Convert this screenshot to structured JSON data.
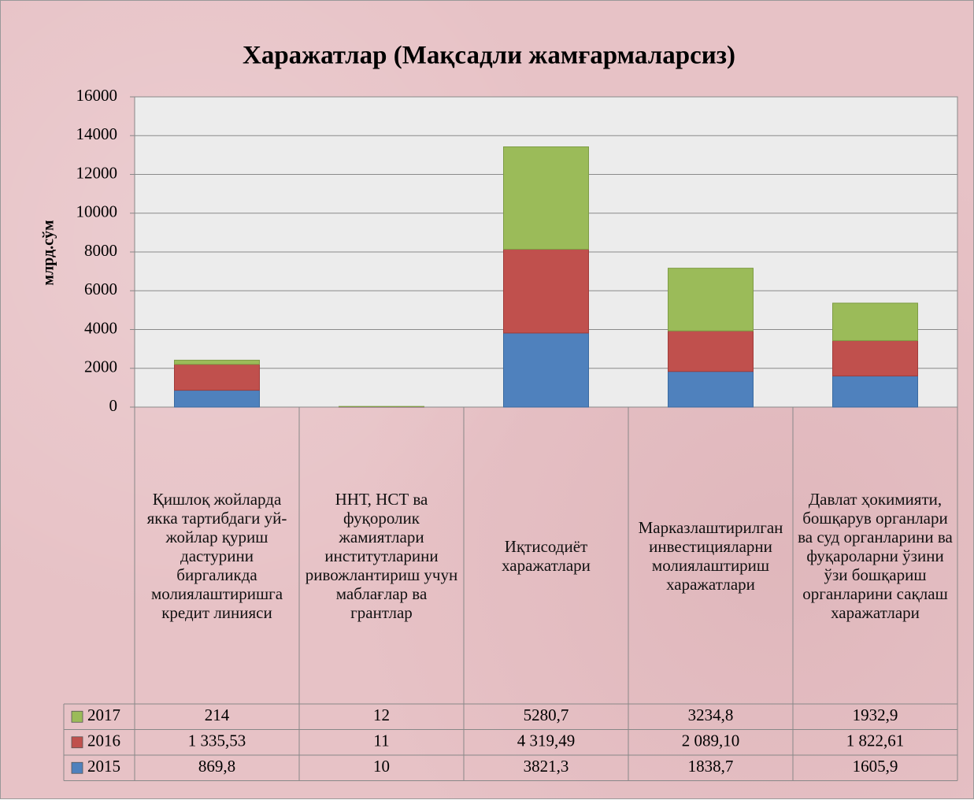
{
  "chart_data": {
    "type": "stacked_bar",
    "title": "Харажатлар (Мақсадли жамғармаларсиз)",
    "y_label": "млрд.сўм",
    "categories": [
      "Қишлоқ жойларда якка тартибдаги уй-жойлар қуриш дастурини биргаликда молиялаштиришга кредит линияси",
      "ННТ, НСТ ва фуқоролик жамиятлари институтларини ривожлантириш учун маблағлар ва грантлар",
      "Иқтисодиёт харажатлари",
      "Марказлаштирилган инвестицияларни молиялаштириш харажатлари",
      "Давлат ҳокимияти, бошқарув органлари ва суд органларини ва фуқароларни ўзини ўзи бошқариш органларини сақлаш харажатлари"
    ],
    "series": [
      {
        "name": "2015",
        "color": "#4f81bd",
        "values": [
          869.8,
          10,
          3821.3,
          1838.7,
          1605.9
        ],
        "value_labels": [
          "869,8",
          "10",
          "3821,3",
          "1838,7",
          "1605,9"
        ]
      },
      {
        "name": "2016",
        "color": "#c0504d",
        "values": [
          1335.53,
          11,
          4319.49,
          2089.1,
          1822.61
        ],
        "value_labels": [
          "1 335,53",
          "11",
          "4 319,49",
          "2 089,10",
          "1 822,61"
        ]
      },
      {
        "name": "2017",
        "color": "#9bbb59",
        "values": [
          214,
          12,
          5280.7,
          3234.8,
          1932.9
        ],
        "value_labels": [
          "214",
          "12",
          "5280,7",
          "3234,8",
          "1932,9"
        ]
      }
    ],
    "ylim": [
      0,
      16000
    ],
    "yticks": [
      0,
      2000,
      4000,
      6000,
      8000,
      10000,
      12000,
      14000,
      16000
    ],
    "grid": true
  }
}
